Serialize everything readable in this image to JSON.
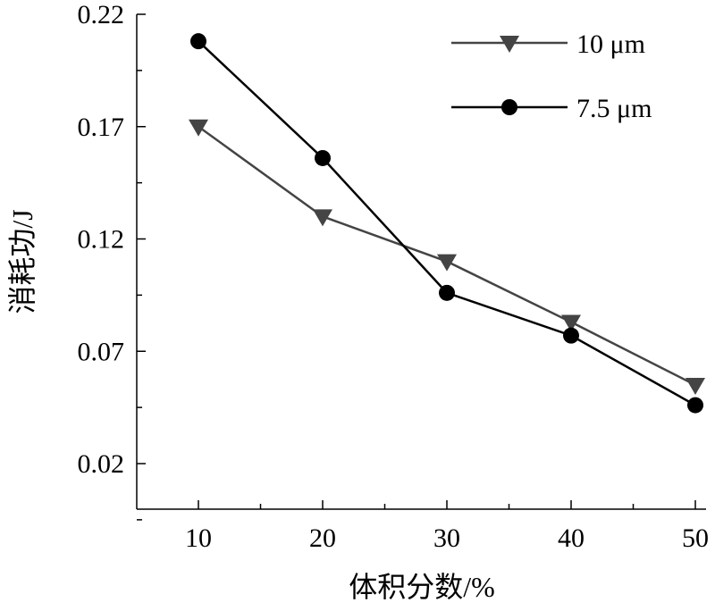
{
  "chart_data": {
    "type": "line",
    "title": "",
    "xlabel": "体积分数/%",
    "ylabel": "消耗功/J",
    "xlim": [
      5,
      51
    ],
    "ylim": [
      0.0,
      0.22
    ],
    "x_ticks": [
      10,
      20,
      30,
      40,
      50
    ],
    "x_tick_labels": [
      "10",
      "20",
      "30",
      "40",
      "50"
    ],
    "y_ticks": [
      0.02,
      0.07,
      0.12,
      0.17,
      0.22
    ],
    "y_tick_labels": [
      "0.02",
      "0.07",
      "0.12",
      "0.17",
      "0.22"
    ],
    "grid": false,
    "legend_position": "top-right",
    "x": [
      10,
      20,
      30,
      40,
      50
    ],
    "series": [
      {
        "name": "10 μm",
        "marker": "triangle-down",
        "color": "#444444",
        "values": [
          0.17,
          0.13,
          0.11,
          0.083,
          0.055
        ]
      },
      {
        "name": "7.5 μm",
        "marker": "circle",
        "color": "#000000",
        "values": [
          0.208,
          0.156,
          0.096,
          0.077,
          0.046
        ]
      }
    ]
  }
}
